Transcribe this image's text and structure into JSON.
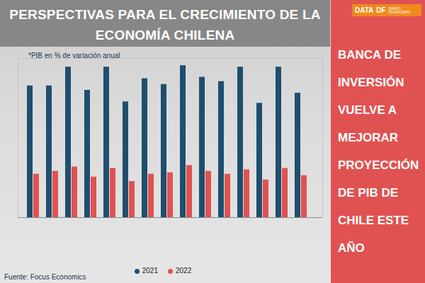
{
  "chart_data": {
    "type": "bar",
    "title": "PERSPECTIVAS PARA EL CRECIMIENTO DE LA ECONOMÍA CHILENA",
    "subtitle": "*PIB en % de variación anual",
    "source": "Fuente: Focus Economics",
    "categories": [
      null,
      null,
      null,
      null,
      null,
      null,
      null,
      null,
      null,
      null,
      null,
      null,
      null,
      null,
      null
    ],
    "series": [
      {
        "name": "2021",
        "color": "#1f4e6e",
        "values": [
          9.1,
          9.1,
          10.4,
          8.8,
          10.4,
          8.0,
          9.6,
          9.2,
          10.5,
          9.7,
          9.4,
          10.4,
          7.9,
          10.4,
          8.6
        ]
      },
      {
        "name": "2022",
        "color": "#e05252",
        "values": [
          3.0,
          3.2,
          3.5,
          2.8,
          3.4,
          2.5,
          3.0,
          3.1,
          3.6,
          3.2,
          3.0,
          3.3,
          2.6,
          3.4,
          2.9
        ]
      }
    ],
    "ylim": [
      0,
      11
    ],
    "tick_labels": false,
    "legend": "bottom"
  },
  "headline": "BANCA DE INVERSIÓN VUELVE A MEJORAR PROYECCIÓN DE PIB DE CHILE ESTE AÑO",
  "logo": [
    "DATA",
    "DF",
    "DIARIO FINANCIERO"
  ]
}
